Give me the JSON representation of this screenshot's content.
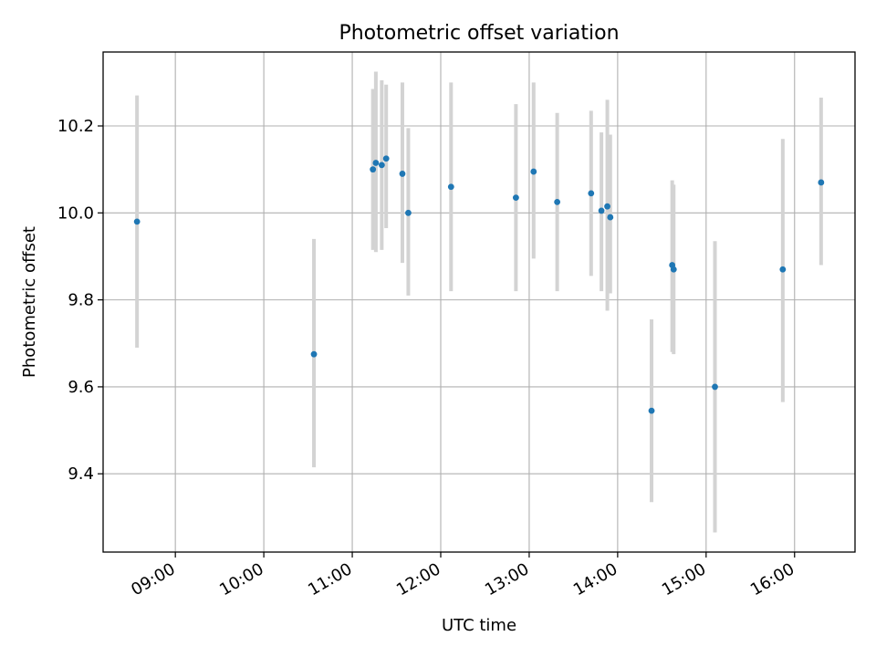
{
  "chart_data": {
    "type": "scatter",
    "title": "Photometric offset variation",
    "xlabel": "UTC time",
    "ylabel": "Photometric offset",
    "x_ticks": [
      "09:00",
      "10:00",
      "11:00",
      "12:00",
      "13:00",
      "14:00",
      "15:00",
      "16:00"
    ],
    "y_ticks": [
      "9.4",
      "9.6",
      "9.8",
      "10.0",
      "10.2"
    ],
    "xlim": [
      "08:11",
      "16:41"
    ],
    "ylim": [
      9.22,
      10.37
    ],
    "grid": true,
    "colors": {
      "points": "#1f77b4",
      "errorbars": "#d3d3d3",
      "grid": "#b0b0b0"
    },
    "points": [
      {
        "time": "08:34",
        "value": 9.98,
        "err_low": 9.69,
        "err_high": 10.27
      },
      {
        "time": "10:34",
        "value": 9.675,
        "err_low": 9.415,
        "err_high": 9.94
      },
      {
        "time": "11:14",
        "value": 10.1,
        "err_low": 9.915,
        "err_high": 10.285
      },
      {
        "time": "11:16",
        "value": 10.115,
        "err_low": 9.91,
        "err_high": 10.325
      },
      {
        "time": "11:20",
        "value": 10.11,
        "err_low": 9.915,
        "err_high": 10.305
      },
      {
        "time": "11:23",
        "value": 10.125,
        "err_low": 9.965,
        "err_high": 10.295
      },
      {
        "time": "11:34",
        "value": 10.09,
        "err_low": 9.885,
        "err_high": 10.3
      },
      {
        "time": "11:38",
        "value": 10.0,
        "err_low": 9.81,
        "err_high": 10.195
      },
      {
        "time": "12:07",
        "value": 10.06,
        "err_low": 9.82,
        "err_high": 10.3
      },
      {
        "time": "12:51",
        "value": 10.035,
        "err_low": 9.82,
        "err_high": 10.25
      },
      {
        "time": "13:03",
        "value": 10.095,
        "err_low": 9.895,
        "err_high": 10.3
      },
      {
        "time": "13:19",
        "value": 10.025,
        "err_low": 9.82,
        "err_high": 10.23
      },
      {
        "time": "13:42",
        "value": 10.045,
        "err_low": 9.855,
        "err_high": 10.235
      },
      {
        "time": "13:49",
        "value": 10.005,
        "err_low": 9.82,
        "err_high": 10.185
      },
      {
        "time": "13:53",
        "value": 10.015,
        "err_low": 9.775,
        "err_high": 10.26
      },
      {
        "time": "13:55",
        "value": 9.99,
        "err_low": 9.815,
        "err_high": 10.18
      },
      {
        "time": "14:23",
        "value": 9.545,
        "err_low": 9.335,
        "err_high": 9.755
      },
      {
        "time": "14:37",
        "value": 9.88,
        "err_low": 9.68,
        "err_high": 10.075
      },
      {
        "time": "14:38",
        "value": 9.87,
        "err_low": 9.675,
        "err_high": 10.065
      },
      {
        "time": "15:06",
        "value": 9.6,
        "err_low": 9.265,
        "err_high": 9.935
      },
      {
        "time": "15:52",
        "value": 9.87,
        "err_low": 9.565,
        "err_high": 10.17
      },
      {
        "time": "16:18",
        "value": 10.07,
        "err_low": 9.88,
        "err_high": 10.265
      }
    ]
  }
}
